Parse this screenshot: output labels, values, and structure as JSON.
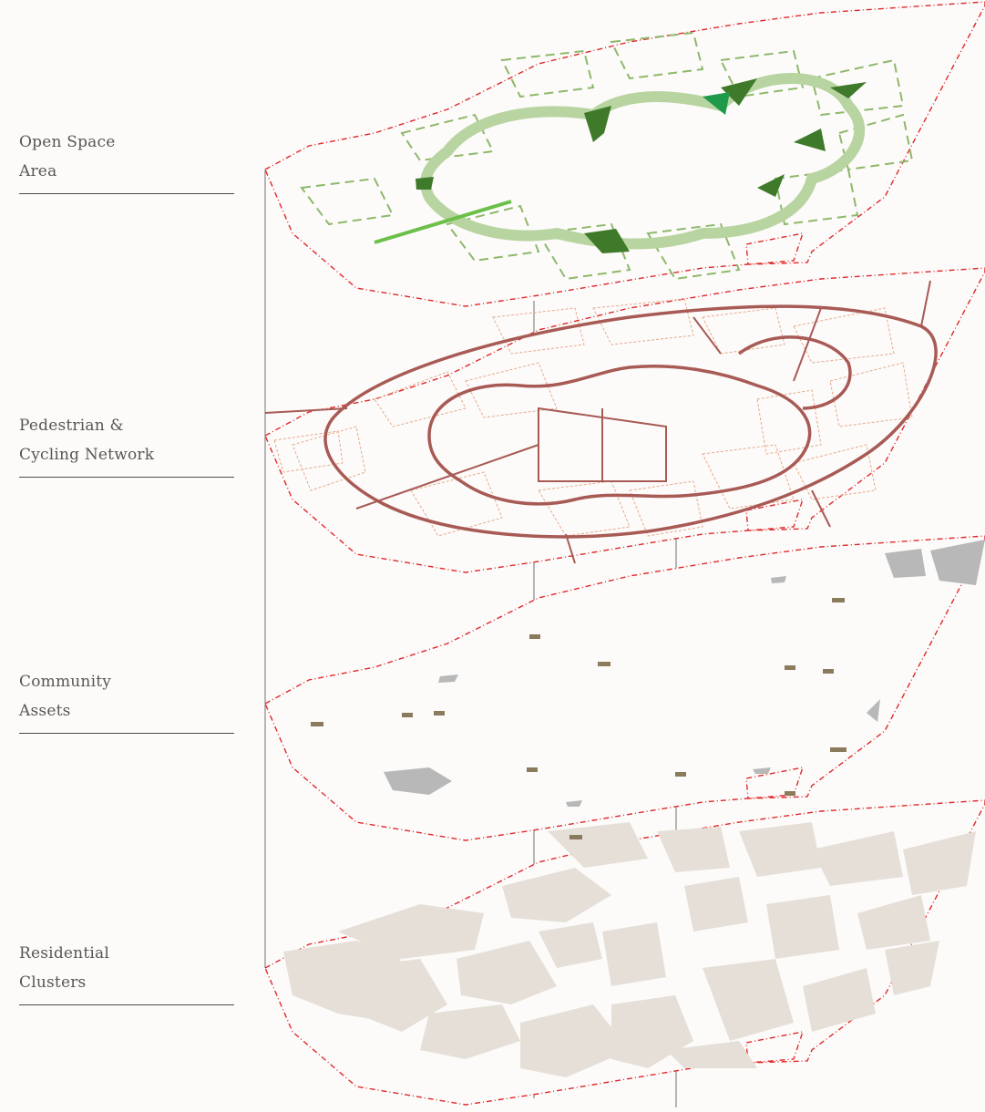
{
  "layers": [
    {
      "id": "open-space",
      "line1": "Open Space",
      "line2": "Area",
      "color": "#6fa24a"
    },
    {
      "id": "pedestrian",
      "line1": "Pedestrian &",
      "line2": "Cycling Network",
      "color": "#a85a55"
    },
    {
      "id": "community",
      "line1": "Community",
      "line2": "Assets",
      "color": "#8b7a5c"
    },
    {
      "id": "residential",
      "line1": "Residential",
      "line2": "Clusters",
      "color": "#e5dfd8"
    }
  ],
  "colors": {
    "boundary": "#e0282a",
    "open_dark": "#3f7a2a",
    "open_mid": "#8fb86a",
    "open_light": "#b8d4a0",
    "open_accent": "#1f9a4a",
    "path_main": "#a85a55",
    "path_minor": "#e8a98a",
    "asset_dot": "#8b7a5c",
    "asset_gray": "#b8b8b8",
    "cluster": "#e5dfd8",
    "connector": "#a0a0a0"
  }
}
